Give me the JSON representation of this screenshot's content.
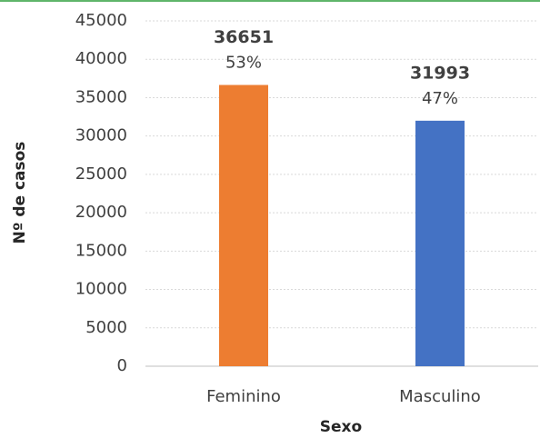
{
  "chart_data": {
    "type": "bar",
    "categories": [
      "Feminino",
      "Masculino"
    ],
    "values": [
      36651,
      31993
    ],
    "colors": [
      "#ed7d31",
      "#4472c4"
    ],
    "percent_labels": [
      "53%",
      "47%"
    ],
    "x_label": "Sexo",
    "y_label": "Nº de casos",
    "ylim": [
      0,
      45000
    ],
    "yticks": [
      0,
      5000,
      10000,
      15000,
      20000,
      25000,
      30000,
      35000,
      40000,
      45000
    ],
    "grid": true
  }
}
